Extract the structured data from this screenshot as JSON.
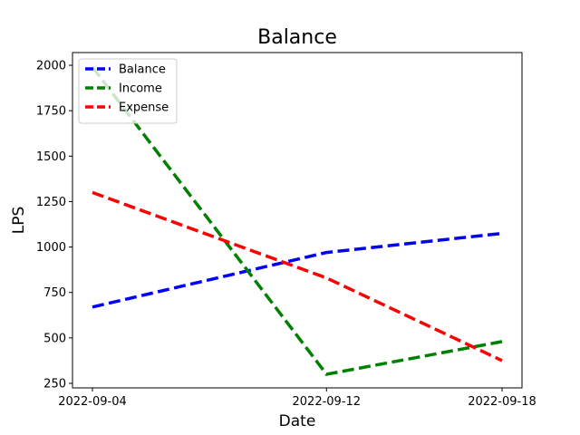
{
  "chart_data": {
    "type": "line",
    "title": "Balance",
    "xlabel": "Date",
    "ylabel": "LPS",
    "x": [
      "2022-09-04",
      "2022-09-12",
      "2022-09-18"
    ],
    "xticks": [
      "2022-09-04",
      "2022-09-12",
      "2022-09-18"
    ],
    "ylim": [
      225,
      2070
    ],
    "yticks": [
      250,
      500,
      750,
      1000,
      1250,
      1500,
      1750,
      2000
    ],
    "grid": false,
    "legend_position": "top-left",
    "series": [
      {
        "name": "Balance",
        "values": [
          670,
          970,
          1075
        ],
        "color": "#0000ff",
        "style": "dashed"
      },
      {
        "name": "Income",
        "values": [
          1990,
          300,
          480
        ],
        "color": "#008000",
        "style": "dashed"
      },
      {
        "name": "Expense",
        "values": [
          1300,
          830,
          375
        ],
        "color": "#ff0000",
        "style": "dashed"
      }
    ]
  }
}
